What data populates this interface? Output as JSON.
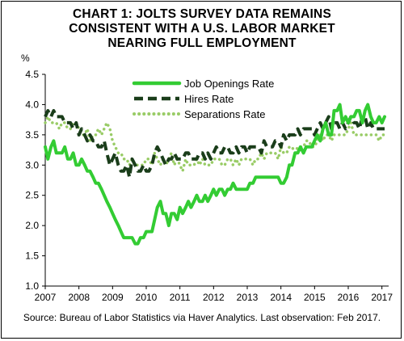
{
  "chart_data": {
    "type": "line",
    "title_lines": [
      "CHART 1: JOLTS SURVEY DATA REMAINS",
      "CONSISTENT WITH A U.S. LABOR MARKET",
      "NEARING FULL EMPLOYMENT"
    ],
    "ylabel": "%",
    "ylim": [
      1.0,
      4.5
    ],
    "yticks": [
      "1.0",
      "1.5",
      "2.0",
      "2.5",
      "3.0",
      "3.5",
      "4.0",
      "4.5"
    ],
    "xlim": [
      2007,
      2017.2
    ],
    "xticks": [
      "2007",
      "2008",
      "2009",
      "2010",
      "2011",
      "2012",
      "2013",
      "2014",
      "2015",
      "2016",
      "2017"
    ],
    "grid": false,
    "legend_position": "top-center",
    "source": "Source: Bureau of Labor Statistics via Haver Analytics. Last observation: Feb 2017.",
    "series": [
      {
        "name": "Job Openings Rate",
        "color": "#33cc33",
        "style": "solid",
        "x": [
          2007.0,
          2007.08,
          2007.17,
          2007.25,
          2007.33,
          2007.42,
          2007.5,
          2007.58,
          2007.67,
          2007.75,
          2007.83,
          2007.92,
          2008.0,
          2008.08,
          2008.17,
          2008.25,
          2008.33,
          2008.42,
          2008.5,
          2008.58,
          2008.67,
          2008.75,
          2008.83,
          2008.92,
          2009.0,
          2009.08,
          2009.17,
          2009.25,
          2009.33,
          2009.42,
          2009.5,
          2009.58,
          2009.67,
          2009.75,
          2009.83,
          2009.92,
          2010.0,
          2010.08,
          2010.17,
          2010.25,
          2010.33,
          2010.42,
          2010.5,
          2010.58,
          2010.67,
          2010.75,
          2010.83,
          2010.92,
          2011.0,
          2011.08,
          2011.17,
          2011.25,
          2011.33,
          2011.42,
          2011.5,
          2011.58,
          2011.67,
          2011.75,
          2011.83,
          2011.92,
          2012.0,
          2012.08,
          2012.17,
          2012.25,
          2012.33,
          2012.42,
          2012.5,
          2012.58,
          2012.67,
          2012.75,
          2012.83,
          2012.92,
          2013.0,
          2013.08,
          2013.17,
          2013.25,
          2013.33,
          2013.42,
          2013.5,
          2013.58,
          2013.67,
          2013.75,
          2013.83,
          2013.92,
          2014.0,
          2014.08,
          2014.17,
          2014.25,
          2014.33,
          2014.42,
          2014.5,
          2014.58,
          2014.67,
          2014.75,
          2014.83,
          2014.92,
          2015.0,
          2015.08,
          2015.17,
          2015.25,
          2015.33,
          2015.42,
          2015.5,
          2015.58,
          2015.67,
          2015.75,
          2015.83,
          2015.92,
          2016.0,
          2016.08,
          2016.17,
          2016.25,
          2016.33,
          2016.42,
          2016.5,
          2016.58,
          2016.67,
          2016.75,
          2016.83,
          2016.92,
          2017.0,
          2017.08
        ],
        "values": [
          3.3,
          3.1,
          3.3,
          3.4,
          3.2,
          3.2,
          3.2,
          3.3,
          3.1,
          3.1,
          3.2,
          3.0,
          3.0,
          3.1,
          3.0,
          2.9,
          2.9,
          2.8,
          2.7,
          2.7,
          2.6,
          2.5,
          2.4,
          2.3,
          2.2,
          2.1,
          2.0,
          1.9,
          1.8,
          1.8,
          1.8,
          1.8,
          1.7,
          1.7,
          1.8,
          1.8,
          1.9,
          1.9,
          1.9,
          2.1,
          2.3,
          2.4,
          2.2,
          2.2,
          2.0,
          2.2,
          2.2,
          2.1,
          2.3,
          2.2,
          2.3,
          2.4,
          2.3,
          2.4,
          2.5,
          2.4,
          2.4,
          2.5,
          2.4,
          2.5,
          2.6,
          2.5,
          2.6,
          2.6,
          2.5,
          2.6,
          2.6,
          2.7,
          2.6,
          2.6,
          2.6,
          2.6,
          2.6,
          2.7,
          2.7,
          2.8,
          2.8,
          2.8,
          2.8,
          2.8,
          2.8,
          2.8,
          2.8,
          2.8,
          2.7,
          2.7,
          2.8,
          3.0,
          3.0,
          3.2,
          3.2,
          3.3,
          3.2,
          3.3,
          3.3,
          3.3,
          3.4,
          3.5,
          3.4,
          3.6,
          3.7,
          3.5,
          3.5,
          3.9,
          3.9,
          4.0,
          3.7,
          3.8,
          3.7,
          3.8,
          3.8,
          3.9,
          3.9,
          3.7,
          3.9,
          4.0,
          3.8,
          3.7,
          3.7,
          3.8,
          3.7,
          3.8
        ]
      },
      {
        "name": "Hires Rate",
        "color": "#1a3d1a",
        "style": "dashed",
        "x": [
          2007.0,
          2007.08,
          2007.17,
          2007.25,
          2007.33,
          2007.42,
          2007.5,
          2007.58,
          2007.67,
          2007.75,
          2007.83,
          2007.92,
          2008.0,
          2008.08,
          2008.17,
          2008.25,
          2008.33,
          2008.42,
          2008.5,
          2008.58,
          2008.67,
          2008.75,
          2008.83,
          2008.92,
          2009.0,
          2009.08,
          2009.17,
          2009.25,
          2009.33,
          2009.42,
          2009.5,
          2009.58,
          2009.67,
          2009.75,
          2009.83,
          2009.92,
          2010.0,
          2010.08,
          2010.17,
          2010.25,
          2010.33,
          2010.42,
          2010.5,
          2010.58,
          2010.67,
          2010.75,
          2010.83,
          2010.92,
          2011.0,
          2011.08,
          2011.17,
          2011.25,
          2011.33,
          2011.42,
          2011.5,
          2011.58,
          2011.67,
          2011.75,
          2011.83,
          2011.92,
          2012.0,
          2012.08,
          2012.17,
          2012.25,
          2012.33,
          2012.42,
          2012.5,
          2012.58,
          2012.67,
          2012.75,
          2012.83,
          2012.92,
          2013.0,
          2013.08,
          2013.17,
          2013.25,
          2013.33,
          2013.42,
          2013.5,
          2013.58,
          2013.67,
          2013.75,
          2013.83,
          2013.92,
          2014.0,
          2014.08,
          2014.17,
          2014.25,
          2014.33,
          2014.42,
          2014.5,
          2014.58,
          2014.67,
          2014.75,
          2014.83,
          2014.92,
          2015.0,
          2015.08,
          2015.17,
          2015.25,
          2015.33,
          2015.42,
          2015.5,
          2015.58,
          2015.67,
          2015.75,
          2015.83,
          2015.92,
          2016.0,
          2016.08,
          2016.17,
          2016.25,
          2016.33,
          2016.42,
          2016.5,
          2016.58,
          2016.67,
          2016.75,
          2016.83,
          2016.92,
          2017.0,
          2017.08
        ],
        "values": [
          3.8,
          3.9,
          3.8,
          3.9,
          3.8,
          3.8,
          3.8,
          3.7,
          3.7,
          3.7,
          3.6,
          3.7,
          3.5,
          3.6,
          3.5,
          3.4,
          3.5,
          3.4,
          3.4,
          3.3,
          3.3,
          3.4,
          3.2,
          3.0,
          3.1,
          3.2,
          3.0,
          2.9,
          2.9,
          3.0,
          2.8,
          3.1,
          3.0,
          2.9,
          2.9,
          3.0,
          2.9,
          2.9,
          3.0,
          3.2,
          3.3,
          3.2,
          3.1,
          3.0,
          3.1,
          3.1,
          3.2,
          3.1,
          3.1,
          3.1,
          3.2,
          3.2,
          3.1,
          3.1,
          3.1,
          3.2,
          3.2,
          3.1,
          3.2,
          3.1,
          3.2,
          3.3,
          3.2,
          3.2,
          3.3,
          3.3,
          3.2,
          3.2,
          3.3,
          3.2,
          3.3,
          3.3,
          3.2,
          3.3,
          3.3,
          3.3,
          3.3,
          3.2,
          3.4,
          3.3,
          3.3,
          3.3,
          3.4,
          3.4,
          3.3,
          3.5,
          3.4,
          3.5,
          3.5,
          3.5,
          3.6,
          3.5,
          3.6,
          3.6,
          3.6,
          3.6,
          3.5,
          3.6,
          3.7,
          3.6,
          3.7,
          3.8,
          3.6,
          3.7,
          3.7,
          3.6,
          3.7,
          3.6,
          3.7,
          3.8,
          3.7,
          3.7,
          3.6,
          3.8,
          3.8,
          3.6,
          3.7,
          3.6,
          3.6,
          3.6,
          3.6,
          3.6
        ]
      },
      {
        "name": "Separations Rate",
        "color": "#99cc66",
        "style": "dotted",
        "x": [
          2007.0,
          2007.08,
          2007.17,
          2007.25,
          2007.33,
          2007.42,
          2007.5,
          2007.58,
          2007.67,
          2007.75,
          2007.83,
          2007.92,
          2008.0,
          2008.08,
          2008.17,
          2008.25,
          2008.33,
          2008.42,
          2008.5,
          2008.58,
          2008.67,
          2008.75,
          2008.83,
          2008.92,
          2009.0,
          2009.08,
          2009.17,
          2009.25,
          2009.33,
          2009.42,
          2009.5,
          2009.58,
          2009.67,
          2009.75,
          2009.83,
          2009.92,
          2010.0,
          2010.08,
          2010.17,
          2010.25,
          2010.33,
          2010.42,
          2010.5,
          2010.58,
          2010.67,
          2010.75,
          2010.83,
          2010.92,
          2011.0,
          2011.08,
          2011.17,
          2011.25,
          2011.33,
          2011.42,
          2011.5,
          2011.58,
          2011.67,
          2011.75,
          2011.83,
          2011.92,
          2012.0,
          2012.08,
          2012.17,
          2012.25,
          2012.33,
          2012.42,
          2012.5,
          2012.58,
          2012.67,
          2012.75,
          2012.83,
          2012.92,
          2013.0,
          2013.08,
          2013.17,
          2013.25,
          2013.33,
          2013.42,
          2013.5,
          2013.58,
          2013.67,
          2013.75,
          2013.83,
          2013.92,
          2014.0,
          2014.08,
          2014.17,
          2014.25,
          2014.33,
          2014.42,
          2014.5,
          2014.58,
          2014.67,
          2014.75,
          2014.83,
          2014.92,
          2015.0,
          2015.08,
          2015.17,
          2015.25,
          2015.33,
          2015.42,
          2015.5,
          2015.58,
          2015.67,
          2015.75,
          2015.83,
          2015.92,
          2016.0,
          2016.08,
          2016.17,
          2016.25,
          2016.33,
          2016.42,
          2016.5,
          2016.58,
          2016.67,
          2016.75,
          2016.83,
          2016.92,
          2017.0,
          2017.08
        ],
        "values": [
          3.7,
          3.8,
          3.7,
          3.7,
          3.7,
          3.6,
          3.7,
          3.7,
          3.6,
          3.6,
          3.7,
          3.7,
          3.6,
          3.5,
          3.5,
          3.6,
          3.4,
          3.5,
          3.5,
          3.6,
          3.5,
          3.6,
          3.7,
          3.6,
          3.4,
          3.3,
          3.2,
          3.2,
          3.1,
          3.1,
          3.0,
          3.1,
          3.0,
          3.0,
          3.0,
          3.0,
          3.1,
          3.1,
          3.0,
          3.2,
          3.1,
          3.0,
          3.1,
          3.0,
          3.1,
          3.2,
          3.0,
          3.1,
          3.0,
          2.9,
          3.1,
          3.0,
          3.0,
          3.0,
          3.1,
          3.0,
          3.1,
          3.0,
          3.0,
          3.0,
          3.1,
          3.1,
          3.1,
          3.0,
          3.0,
          3.1,
          3.1,
          3.0,
          3.1,
          3.0,
          3.1,
          3.1,
          3.1,
          3.1,
          3.0,
          3.1,
          3.1,
          3.2,
          3.1,
          3.2,
          3.2,
          3.2,
          3.2,
          3.1,
          3.3,
          3.2,
          3.2,
          3.3,
          3.3,
          3.2,
          3.3,
          3.3,
          3.3,
          3.4,
          3.4,
          3.3,
          3.3,
          3.4,
          3.5,
          3.4,
          3.5,
          3.5,
          3.4,
          3.5,
          3.5,
          3.5,
          3.5,
          3.5,
          3.6,
          3.7,
          3.5,
          3.5,
          3.5,
          3.5,
          3.5,
          3.5,
          3.5,
          3.5,
          3.5,
          3.4,
          3.5,
          3.5
        ]
      }
    ]
  }
}
